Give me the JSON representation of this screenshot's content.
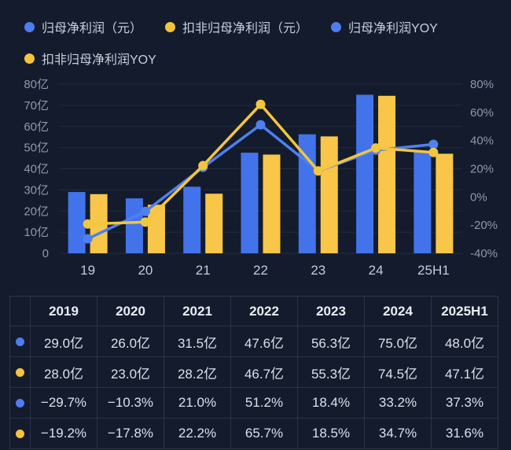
{
  "colors": {
    "background": "#141B2C",
    "bar_blue": "#4273EA",
    "bar_yellow": "#F8C649",
    "line_blue": "#4E80F0",
    "line_yellow": "#F2C63E",
    "grid": "rgba(170,190,225,0.10)",
    "axis_text": "#8D98AF",
    "x_label_text": "#C4CBDA",
    "table_border": "#2B3448"
  },
  "legend": {
    "rows": [
      [
        {
          "label": "归母净利润（元）",
          "color": "#4E7DF2"
        },
        {
          "label": "扣非归母净利润（元）",
          "color": "#F5C33E"
        },
        {
          "label": "归母净利润YOY",
          "color": "#4E7DF2"
        }
      ],
      [
        {
          "label": "扣非归母净利润YOY",
          "color": "#F5C33E"
        }
      ]
    ]
  },
  "chart_data": {
    "type": "bar+line combo",
    "title": "",
    "categories": [
      "19",
      "20",
      "21",
      "22",
      "23",
      "24",
      "25H1"
    ],
    "bar_series": [
      {
        "name": "归母净利润（元）",
        "color": "#4273EA",
        "axis": "left",
        "values": [
          29.0,
          26.0,
          31.5,
          47.6,
          56.3,
          75.0,
          48.0
        ]
      },
      {
        "name": "扣非归母净利润（元）",
        "color": "#F8C649",
        "axis": "left",
        "values": [
          28.0,
          23.0,
          28.2,
          46.7,
          55.3,
          74.5,
          47.1
        ]
      }
    ],
    "line_series": [
      {
        "name": "归母净利润YOY",
        "color": "#4E80F0",
        "axis": "right",
        "values": [
          -29.7,
          -10.3,
          21.0,
          51.2,
          18.4,
          33.2,
          37.3
        ]
      },
      {
        "name": "扣非归母净利润YOY",
        "color": "#F2C63E",
        "axis": "right",
        "values": [
          -19.2,
          -17.8,
          22.2,
          65.7,
          18.5,
          34.7,
          31.6
        ]
      }
    ],
    "left_axis": {
      "unit": "亿",
      "min": 0,
      "max": 80,
      "ticks": [
        "80亿",
        "70亿",
        "60亿",
        "50亿",
        "40亿",
        "30亿",
        "20亿",
        "10亿",
        "0"
      ]
    },
    "right_axis": {
      "unit": "%",
      "min": -40,
      "max": 80,
      "ticks": [
        "80%",
        "60%",
        "40%",
        "20%",
        "0%",
        "-20%",
        "-40%"
      ]
    },
    "grid": true,
    "legend_position": "top"
  },
  "table": {
    "header": [
      "",
      "2019",
      "2020",
      "2021",
      "2022",
      "2023",
      "2024",
      "2025H1"
    ],
    "rows": [
      {
        "dot": "#4E7DF2",
        "series": "归母净利润（元）",
        "cells": [
          "29.0亿",
          "26.0亿",
          "31.5亿",
          "47.6亿",
          "56.3亿",
          "75.0亿",
          "48.0亿"
        ]
      },
      {
        "dot": "#F5C33E",
        "series": "扣非归母净利润（元）",
        "cells": [
          "28.0亿",
          "23.0亿",
          "28.2亿",
          "46.7亿",
          "55.3亿",
          "74.5亿",
          "47.1亿"
        ]
      },
      {
        "dot": "#4E7DF2",
        "series": "归母净利润YOY",
        "cells": [
          "−29.7%",
          "−10.3%",
          "21.0%",
          "51.2%",
          "18.4%",
          "33.2%",
          "37.3%"
        ]
      },
      {
        "dot": "#F5C33E",
        "series": "扣非归母净利润YOY",
        "cells": [
          "−19.2%",
          "−17.8%",
          "22.2%",
          "65.7%",
          "18.5%",
          "34.7%",
          "31.6%"
        ]
      }
    ]
  }
}
